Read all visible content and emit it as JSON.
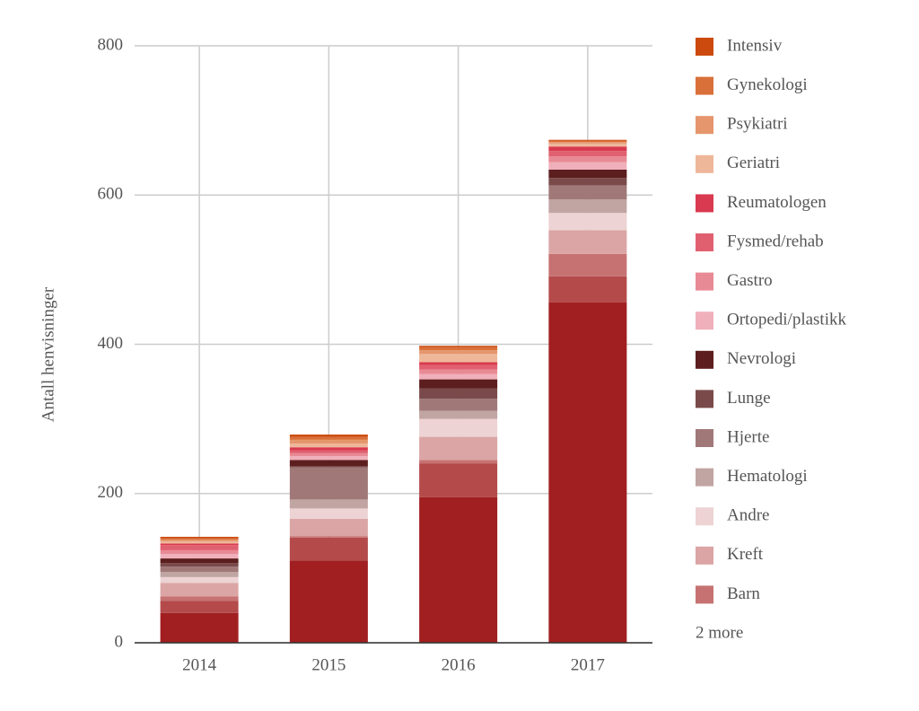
{
  "chart_data": {
    "type": "stacked_bar",
    "y_label": "Antall henvisninger",
    "categories": [
      "2014",
      "2015",
      "2016",
      "2017"
    ],
    "ylim": [
      0,
      800
    ],
    "yticks": [
      0,
      200,
      400,
      600,
      800
    ],
    "grid": true,
    "legend_more": "2 more",
    "series": [
      {
        "name": "Intensiv",
        "color": "#cc4a0e",
        "values": [
          2,
          3,
          2,
          1
        ]
      },
      {
        "name": "Gynekologi",
        "color": "#d9703a",
        "values": [
          2,
          4,
          4,
          2
        ]
      },
      {
        "name": "Psykiatri",
        "color": "#e5966c",
        "values": [
          2,
          5,
          5,
          2
        ]
      },
      {
        "name": "Geriatri",
        "color": "#eeb79a",
        "values": [
          3,
          5,
          11,
          4
        ]
      },
      {
        "name": "Reumatologen",
        "color": "#d93a50",
        "values": [
          2,
          4,
          4,
          6
        ]
      },
      {
        "name": "Fysmed/rehab",
        "color": "#e06070",
        "values": [
          7,
          4,
          6,
          7
        ]
      },
      {
        "name": "Gastro",
        "color": "#e88a95",
        "values": [
          5,
          4,
          6,
          8
        ]
      },
      {
        "name": "Ortopedi/plastikk",
        "color": "#f0b0bb",
        "values": [
          6,
          5,
          7,
          10
        ]
      },
      {
        "name": "Nevrologi",
        "color": "#5c1e1e",
        "values": [
          6,
          8,
          12,
          11
        ]
      },
      {
        "name": "Lunge",
        "color": "#7a4a4a",
        "values": [
          5,
          2,
          14,
          10
        ]
      },
      {
        "name": "Hjerte",
        "color": "#a07878",
        "values": [
          7,
          43,
          16,
          19
        ]
      },
      {
        "name": "Hematologi",
        "color": "#c0a5a2",
        "values": [
          7,
          12,
          11,
          18
        ]
      },
      {
        "name": "Andre",
        "color": "#edd3d3",
        "values": [
          8,
          14,
          24,
          23
        ]
      },
      {
        "name": "Kreft",
        "color": "#dba5a5",
        "values": [
          18,
          23,
          31,
          32
        ]
      },
      {
        "name": "Barn",
        "color": "#c77272",
        "values": [
          6,
          2,
          5,
          30
        ]
      },
      {
        "color": "#b44a4a",
        "values": [
          16,
          31,
          45,
          35
        ]
      },
      {
        "color": "#a11f20",
        "values": [
          40,
          110,
          195,
          456
        ]
      }
    ]
  }
}
